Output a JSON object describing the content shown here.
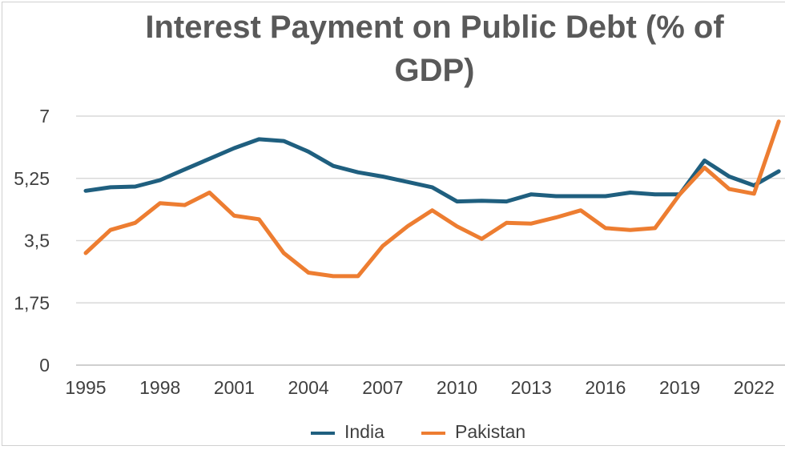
{
  "chart_data": {
    "type": "line",
    "title_line1": "Interest Payment on Public Debt (% of",
    "title_line2": "GDP)",
    "ylim": [
      0,
      7
    ],
    "y_ticks": [
      "0",
      "1,75",
      "3,5",
      "5,25",
      "7"
    ],
    "y_tick_values": [
      0,
      1.75,
      3.5,
      5.25,
      7
    ],
    "x_tick_labels": [
      "1995",
      "1998",
      "2001",
      "2004",
      "2007",
      "2010",
      "2013",
      "2016",
      "2019",
      "2022"
    ],
    "x": [
      1995,
      1996,
      1997,
      1998,
      1999,
      2000,
      2001,
      2002,
      2003,
      2004,
      2005,
      2006,
      2007,
      2008,
      2009,
      2010,
      2011,
      2012,
      2013,
      2014,
      2015,
      2016,
      2017,
      2018,
      2019,
      2020,
      2021,
      2022,
      2023
    ],
    "series": [
      {
        "name": "India",
        "color": "#1f5f7f",
        "values": [
          4.9,
          5.0,
          5.02,
          5.2,
          5.5,
          5.8,
          6.1,
          6.35,
          6.3,
          6.0,
          5.6,
          5.42,
          5.3,
          5.15,
          5.0,
          4.6,
          4.62,
          4.6,
          4.8,
          4.75,
          4.75,
          4.75,
          4.85,
          4.8,
          4.8,
          5.75,
          5.3,
          5.05,
          5.45
        ]
      },
      {
        "name": "Pakistan",
        "color": "#ed7d31",
        "values": [
          3.15,
          3.8,
          4.0,
          4.55,
          4.5,
          4.85,
          4.2,
          4.1,
          3.15,
          2.6,
          2.5,
          2.5,
          3.35,
          3.9,
          4.35,
          3.9,
          3.55,
          4.0,
          3.98,
          4.15,
          4.35,
          3.85,
          3.8,
          3.85,
          4.8,
          5.55,
          4.95,
          4.82,
          6.85
        ]
      }
    ],
    "legend": [
      "India",
      "Pakistan"
    ],
    "grid": true
  }
}
